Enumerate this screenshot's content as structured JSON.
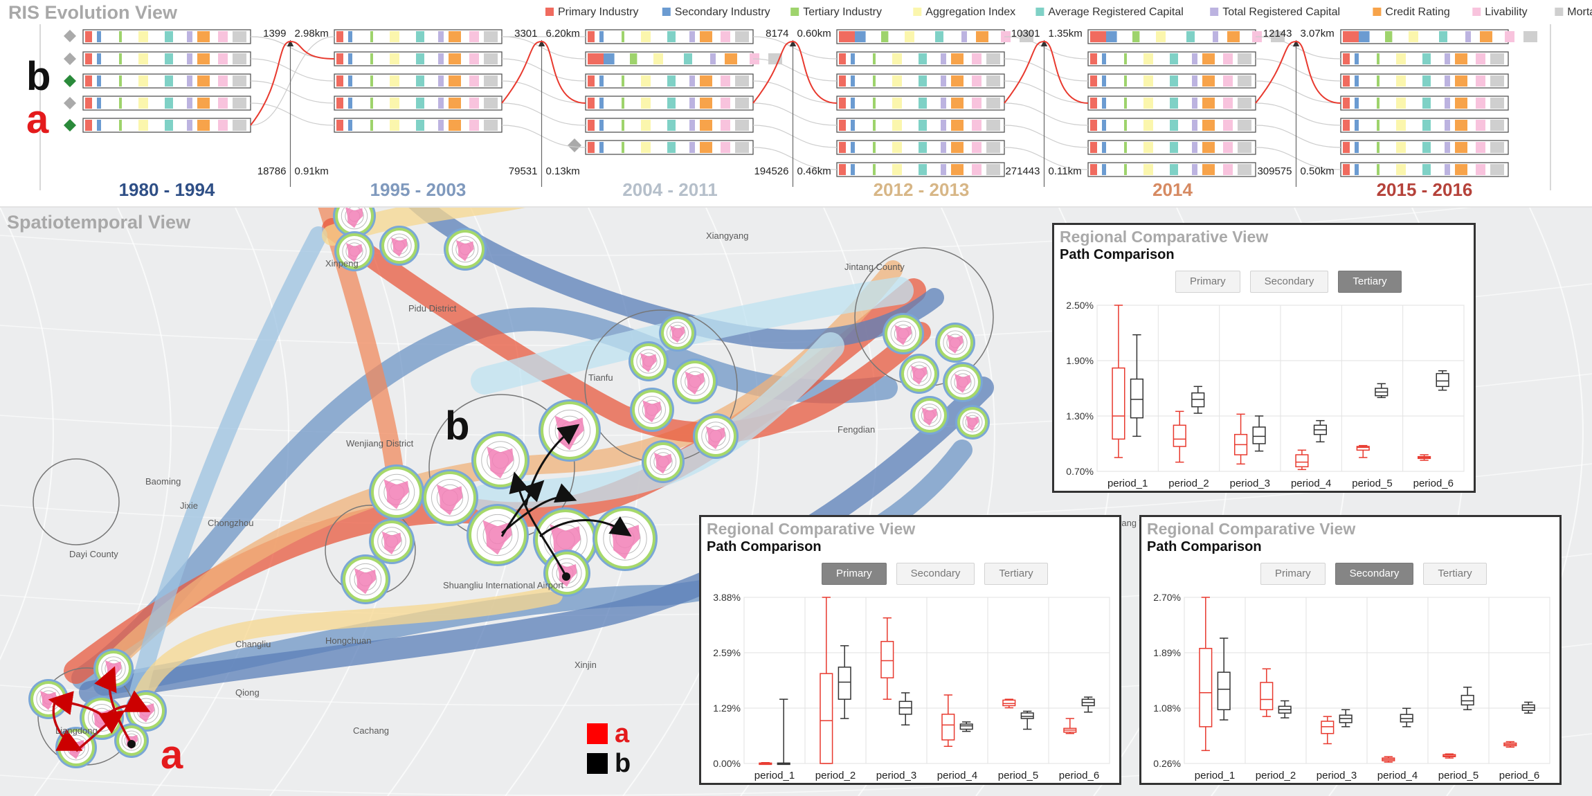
{
  "evolution": {
    "title": "RIS Evolution View",
    "legend": [
      {
        "label": "Primary Industry",
        "color": "#f06b5f"
      },
      {
        "label": "Secondary Industry",
        "color": "#6b9bd1"
      },
      {
        "label": "Tertiary Industry",
        "color": "#9ed36c"
      },
      {
        "label": "Aggregation Index",
        "color": "#fbf6ad"
      },
      {
        "label": "Average Registered Capital",
        "color": "#7fd1c6"
      },
      {
        "label": "Total Registered Capital",
        "color": "#bcb3e0"
      },
      {
        "label": "Credit Rating",
        "color": "#f7a34a"
      },
      {
        "label": "Livability",
        "color": "#f8c3dd"
      },
      {
        "label": "Mortality",
        "color": "#cfcfcf"
      }
    ],
    "path_labels": {
      "a": "a",
      "b": "b"
    },
    "periods": [
      {
        "label": "1980 - 1994",
        "color": "#2f4f86"
      },
      {
        "label": "1995 - 2003",
        "color": "#7f99bd"
      },
      {
        "label": "2004 - 2011",
        "color": "#b5bfca"
      },
      {
        "label": "2012 - 2013",
        "color": "#d7b686"
      },
      {
        "label": "2014",
        "color": "#d68a62"
      },
      {
        "label": "2015 - 2016",
        "color": "#b5423a"
      }
    ],
    "links": [
      {
        "top_count": "1399",
        "top_dist": "2.98km",
        "bottom_count": "18786",
        "bottom_dist": "0.91km"
      },
      {
        "top_count": "3301",
        "top_dist": "6.20km",
        "bottom_count": "79531",
        "bottom_dist": "0.13km"
      },
      {
        "top_count": "8174",
        "top_dist": "0.60km",
        "bottom_count": "194526",
        "bottom_dist": "0.46km"
      },
      {
        "top_count": "10301",
        "top_dist": "1.35km",
        "bottom_count": "271443",
        "bottom_dist": "0.11km"
      },
      {
        "top_count": "12143",
        "top_dist": "3.07km",
        "bottom_count": "309575",
        "bottom_dist": "0.50km"
      }
    ]
  },
  "spatiotemporal": {
    "title": "Spatiotemporal View",
    "legend": [
      {
        "label": "a",
        "color": "#ff0000"
      },
      {
        "label": "b",
        "color": "#000000"
      }
    ],
    "cluster_labels": {
      "a": "a",
      "b": "b"
    },
    "map_labels": [
      "Xiangyang",
      "Jintang County",
      "Pidu District",
      "Wenjiang District",
      "Chongzhou",
      "Dayi County",
      "Jixie",
      "Baoming",
      "Tianfu",
      "Fengdian",
      "Huayang Town",
      "Xinjin",
      "Cachang",
      "Changliu",
      "Hongchuan",
      "Qiong",
      "Liangdong",
      "Xinpeng",
      "Shuangliu International Airport"
    ]
  },
  "comparative_views": [
    {
      "title": "Regional Comparative View",
      "subtitle": "Path Comparison",
      "buttons": [
        "Primary",
        "Secondary",
        "Tertiary"
      ],
      "active": "Tertiary",
      "chart_data": {
        "type": "boxplot",
        "categories": [
          "period_1",
          "period_2",
          "period_3",
          "period_4",
          "period_5",
          "period_6"
        ],
        "y_ticks": [
          "2.50%",
          "1.90%",
          "1.30%",
          "0.70%"
        ],
        "ylim": [
          0.7,
          2.5
        ],
        "series": [
          {
            "name": "a",
            "color": "#e8392e",
            "values": [
              [
                0.85,
                1.05,
                1.3,
                1.82,
                2.5
              ],
              [
                0.8,
                0.97,
                1.05,
                1.2,
                1.35
              ],
              [
                0.78,
                0.88,
                0.99,
                1.1,
                1.32
              ],
              [
                0.72,
                0.75,
                0.8,
                0.88,
                0.93
              ],
              [
                0.85,
                0.93,
                0.96,
                0.97,
                0.98
              ],
              [
                0.82,
                0.84,
                0.85,
                0.86,
                0.88
              ]
            ]
          },
          {
            "name": "b",
            "color": "#333333",
            "values": [
              [
                1.08,
                1.28,
                1.48,
                1.7,
                2.18
              ],
              [
                1.33,
                1.4,
                1.48,
                1.55,
                1.62
              ],
              [
                0.92,
                1.0,
                1.08,
                1.18,
                1.3
              ],
              [
                1.02,
                1.1,
                1.15,
                1.2,
                1.25
              ],
              [
                1.5,
                1.52,
                1.56,
                1.6,
                1.65
              ],
              [
                1.58,
                1.62,
                1.68,
                1.76,
                1.79
              ]
            ]
          }
        ]
      }
    },
    {
      "title": "Regional Comparative View",
      "subtitle": "Path Comparison",
      "buttons": [
        "Primary",
        "Secondary",
        "Tertiary"
      ],
      "active": "Primary",
      "chart_data": {
        "type": "boxplot",
        "categories": [
          "period_1",
          "period_2",
          "period_3",
          "period_4",
          "period_5",
          "period_6"
        ],
        "y_ticks": [
          "3.88%",
          "2.59%",
          "1.29%",
          "0.00%"
        ],
        "ylim": [
          0.0,
          3.88
        ],
        "series": [
          {
            "name": "a",
            "color": "#e8392e",
            "values": [
              [
                0.0,
                0.0,
                0.0,
                0.01,
                0.02
              ],
              [
                0.0,
                0.0,
                1.0,
                2.1,
                3.88
              ],
              [
                1.5,
                2.0,
                2.4,
                2.85,
                3.4
              ],
              [
                0.4,
                0.55,
                0.9,
                1.15,
                1.6
              ],
              [
                1.3,
                1.35,
                1.4,
                1.48,
                1.5
              ],
              [
                0.7,
                0.73,
                0.78,
                0.82,
                1.05
              ]
            ]
          },
          {
            "name": "b",
            "color": "#333333",
            "values": [
              [
                0.0,
                0.0,
                0.0,
                0.01,
                1.5
              ],
              [
                1.05,
                1.5,
                1.9,
                2.25,
                2.75
              ],
              [
                0.9,
                1.15,
                1.3,
                1.45,
                1.65
              ],
              [
                0.75,
                0.8,
                0.88,
                0.92,
                0.97
              ],
              [
                0.8,
                1.05,
                1.1,
                1.18,
                1.22
              ],
              [
                1.2,
                1.35,
                1.42,
                1.5,
                1.55
              ]
            ]
          }
        ]
      }
    },
    {
      "title": "Regional Comparative View",
      "subtitle": "Path Comparison",
      "buttons": [
        "Primary",
        "Secondary",
        "Tertiary"
      ],
      "active": "Secondary",
      "chart_data": {
        "type": "boxplot",
        "categories": [
          "period_1",
          "period_2",
          "period_3",
          "period_4",
          "period_5",
          "period_6"
        ],
        "y_ticks": [
          "2.70%",
          "1.89%",
          "1.08%",
          "0.26%"
        ],
        "ylim": [
          0.26,
          2.7
        ],
        "series": [
          {
            "name": "a",
            "color": "#e8392e",
            "values": [
              [
                0.45,
                0.8,
                1.3,
                1.95,
                2.7
              ],
              [
                0.95,
                1.05,
                1.2,
                1.45,
                1.65
              ],
              [
                0.55,
                0.7,
                0.8,
                0.88,
                0.95
              ],
              [
                0.28,
                0.3,
                0.32,
                0.34,
                0.36
              ],
              [
                0.34,
                0.36,
                0.37,
                0.39,
                0.4
              ],
              [
                0.5,
                0.52,
                0.54,
                0.56,
                0.58
              ]
            ]
          },
          {
            "name": "b",
            "color": "#333333",
            "values": [
              [
                0.9,
                1.05,
                1.35,
                1.6,
                2.1
              ],
              [
                0.93,
                1.0,
                1.05,
                1.1,
                1.18
              ],
              [
                0.8,
                0.86,
                0.92,
                0.97,
                1.05
              ],
              [
                0.8,
                0.87,
                0.92,
                0.98,
                1.07
              ],
              [
                1.05,
                1.12,
                1.18,
                1.26,
                1.38
              ],
              [
                1.0,
                1.04,
                1.08,
                1.12,
                1.16
              ]
            ]
          }
        ]
      }
    }
  ]
}
